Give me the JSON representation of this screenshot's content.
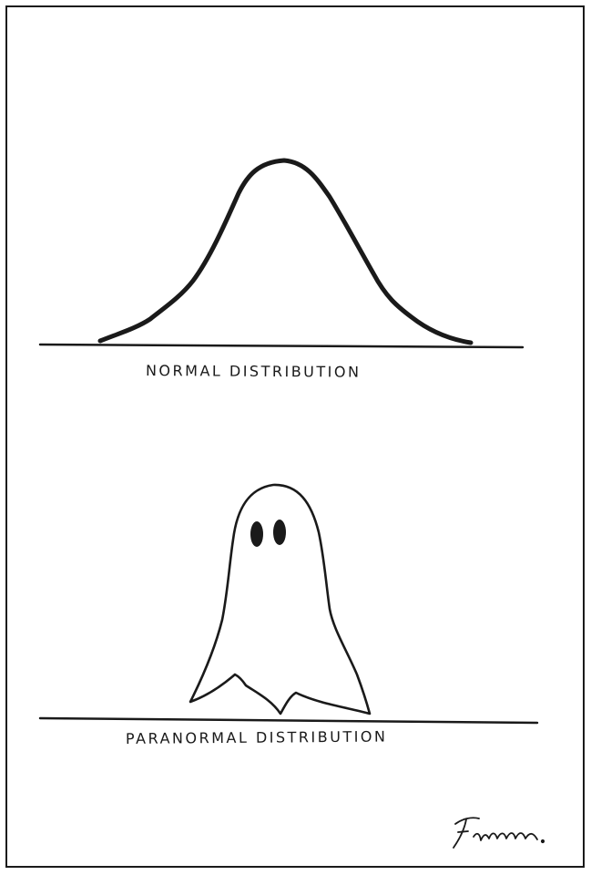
{
  "panels": [
    {
      "id": "normal",
      "caption": "NORMAL DISTRIBUTION"
    },
    {
      "id": "paranormal",
      "caption": "PARANORMAL DISTRIBUTION"
    }
  ],
  "signature": "Freeman.",
  "colors": {
    "ink": "#1a1a1a",
    "paper": "#ffffff"
  }
}
